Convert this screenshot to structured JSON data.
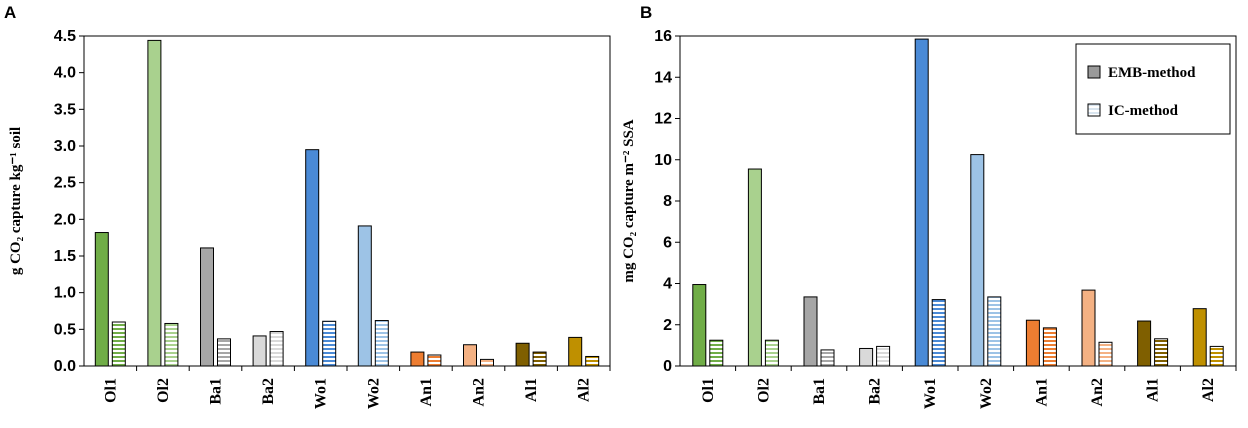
{
  "chart_data": [
    {
      "panel": "A",
      "type": "bar",
      "ylabel": "g CO₂ capture kg⁻¹ soil",
      "ylim": [
        0,
        4.5
      ],
      "yticks": [
        "0.0",
        "0.5",
        "1.0",
        "1.5",
        "2.0",
        "2.5",
        "3.0",
        "3.5",
        "4.0",
        "4.5"
      ],
      "categories": [
        "Ol1",
        "Ol2",
        "Ba1",
        "Ba2",
        "Wo1",
        "Wo2",
        "An1",
        "An2",
        "Al1",
        "Al2"
      ],
      "series": [
        {
          "name": "EMB-method",
          "values": [
            1.82,
            4.44,
            1.61,
            0.41,
            2.95,
            1.91,
            0.19,
            0.29,
            0.31,
            0.39
          ]
        },
        {
          "name": "IC-method",
          "values": [
            0.6,
            0.58,
            0.37,
            0.47,
            0.61,
            0.62,
            0.15,
            0.09,
            0.19,
            0.13
          ]
        }
      ]
    },
    {
      "panel": "B",
      "type": "bar",
      "ylabel": "mg CO₂ capture m⁻² SSA",
      "ylim": [
        0,
        16
      ],
      "yticks": [
        "0",
        "2",
        "4",
        "6",
        "8",
        "10",
        "12",
        "14",
        "16"
      ],
      "categories": [
        "Ol1",
        "Ol2",
        "Ba1",
        "Ba2",
        "Wo1",
        "Wo2",
        "An1",
        "An2",
        "Al1",
        "Al2"
      ],
      "series": [
        {
          "name": "EMB-method",
          "values": [
            3.95,
            9.55,
            3.35,
            0.85,
            15.85,
            10.25,
            2.22,
            3.68,
            2.18,
            2.78
          ]
        },
        {
          "name": "IC-method",
          "values": [
            1.25,
            1.25,
            0.78,
            0.95,
            3.22,
            3.35,
            1.85,
            1.15,
            1.32,
            0.95
          ]
        }
      ],
      "legend": {
        "position": "top-right",
        "entries": [
          "EMB-method",
          "IC-method"
        ]
      }
    }
  ],
  "colors": {
    "solid": [
      "#70ad47",
      "#a9d18e",
      "#a6a6a6",
      "#d9d9d9",
      "#4a8ad6",
      "#9dc3e6",
      "#ed7d31",
      "#f4b183",
      "#7f5f00",
      "#bf9000"
    ],
    "legend_emb": "#9a9a9a",
    "legend_ic": "#d9e5ef"
  }
}
